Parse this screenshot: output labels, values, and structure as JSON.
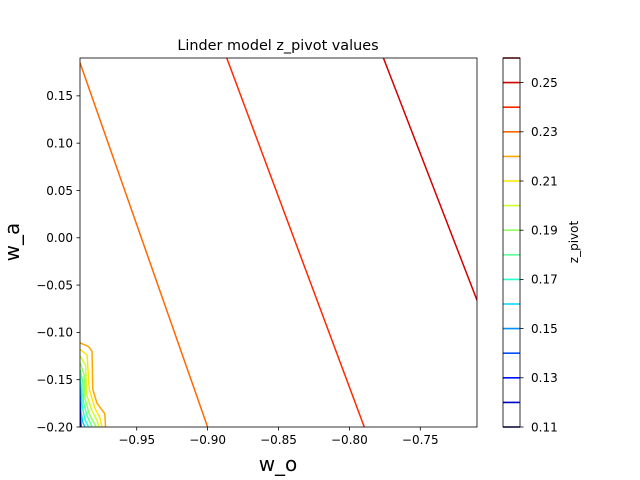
{
  "chart_data": {
    "type": "contour",
    "title": "Linder model z_pivot values",
    "xlabel": "w_o",
    "ylabel": "w_a",
    "xlim": [
      -0.99,
      -0.71
    ],
    "ylim": [
      -0.2,
      0.19
    ],
    "x_ticks": [
      -0.95,
      -0.9,
      -0.85,
      -0.8,
      -0.75
    ],
    "x_tick_labels": [
      "−0.95",
      "−0.90",
      "−0.85",
      "−0.80",
      "−0.75"
    ],
    "y_ticks": [
      0.15,
      0.1,
      0.05,
      0.0,
      -0.05,
      -0.1,
      -0.15,
      -0.2
    ],
    "y_tick_labels": [
      "0.15",
      "0.10",
      "0.05",
      "0.00",
      "−0.05",
      "−0.10",
      "−0.15",
      "−0.20"
    ],
    "colorbar": {
      "label": "z_pivot",
      "range": [
        0.11,
        0.26
      ],
      "levels": [
        0.11,
        0.12,
        0.13,
        0.14,
        0.15,
        0.16,
        0.17,
        0.18,
        0.19,
        0.2,
        0.21,
        0.22,
        0.23,
        0.24,
        0.25,
        0.26
      ],
      "level_colors": [
        "#00007f",
        "#0000c4",
        "#0010ff",
        "#0050ff",
        "#0090ff",
        "#00d4ff",
        "#29ffce",
        "#60ff97",
        "#97ff60",
        "#ceff29",
        "#ffe600",
        "#ffa700",
        "#ff6800",
        "#ff2900",
        "#d40000",
        "#7f0000"
      ],
      "tick_values": [
        0.11,
        0.13,
        0.15,
        0.17,
        0.19,
        0.21,
        0.23,
        0.25
      ],
      "tick_labels": [
        "0.11",
        "0.13",
        "0.15",
        "0.17",
        "0.19",
        "0.21",
        "0.23",
        "0.25"
      ]
    },
    "contour_lines": [
      {
        "level": 0.23,
        "color": "#ff6800",
        "points": [
          [
            -0.99,
            0.185
          ],
          [
            -0.9,
            -0.2
          ]
        ]
      },
      {
        "level": 0.24,
        "color": "#ff2900",
        "points": [
          [
            -0.8865,
            0.19
          ],
          [
            -0.7895,
            -0.2
          ]
        ]
      },
      {
        "level": 0.25,
        "color": "#d40000",
        "points": [
          [
            -0.776,
            0.19
          ],
          [
            -0.71,
            -0.066
          ]
        ]
      }
    ],
    "corner_contours": [
      {
        "level": 0.22,
        "color": "#ffa700",
        "points": [
          [
            -0.99,
            -0.111
          ],
          [
            -0.984,
            -0.115
          ],
          [
            -0.9815,
            -0.12
          ],
          [
            -0.981,
            -0.16
          ],
          [
            -0.978,
            -0.175
          ],
          [
            -0.9725,
            -0.186
          ],
          [
            -0.972,
            -0.2
          ]
        ]
      },
      {
        "level": 0.21,
        "color": "#ffe600",
        "points": [
          [
            -0.99,
            -0.118
          ],
          [
            -0.985,
            -0.124
          ],
          [
            -0.9835,
            -0.16
          ],
          [
            -0.9795,
            -0.18
          ],
          [
            -0.976,
            -0.19
          ],
          [
            -0.9745,
            -0.2
          ]
        ]
      },
      {
        "level": 0.2,
        "color": "#ceff29",
        "points": [
          [
            -0.99,
            -0.125
          ],
          [
            -0.986,
            -0.135
          ],
          [
            -0.9855,
            -0.165
          ],
          [
            -0.9815,
            -0.183
          ],
          [
            -0.978,
            -0.193
          ],
          [
            -0.9765,
            -0.2
          ]
        ]
      },
      {
        "level": 0.19,
        "color": "#97ff60",
        "points": [
          [
            -0.99,
            -0.132
          ],
          [
            -0.987,
            -0.145
          ],
          [
            -0.9865,
            -0.17
          ],
          [
            -0.9835,
            -0.186
          ],
          [
            -0.98,
            -0.196
          ],
          [
            -0.9785,
            -0.2
          ]
        ]
      },
      {
        "level": 0.18,
        "color": "#60ff97",
        "points": [
          [
            -0.99,
            -0.139
          ],
          [
            -0.988,
            -0.153
          ],
          [
            -0.9875,
            -0.174
          ],
          [
            -0.985,
            -0.188
          ],
          [
            -0.9815,
            -0.2
          ]
        ]
      },
      {
        "level": 0.17,
        "color": "#29ffce",
        "points": [
          [
            -0.99,
            -0.146
          ],
          [
            -0.989,
            -0.16
          ],
          [
            -0.9885,
            -0.178
          ],
          [
            -0.9865,
            -0.192
          ],
          [
            -0.984,
            -0.2
          ]
        ]
      },
      {
        "level": 0.16,
        "color": "#00d4ff",
        "points": [
          [
            -0.99,
            -0.153
          ],
          [
            -0.9895,
            -0.168
          ],
          [
            -0.9895,
            -0.183
          ],
          [
            -0.988,
            -0.195
          ],
          [
            -0.9865,
            -0.2
          ]
        ]
      },
      {
        "level": 0.15,
        "color": "#0090ff",
        "points": [
          [
            -0.99,
            -0.16
          ],
          [
            -0.9898,
            -0.175
          ],
          [
            -0.9898,
            -0.188
          ],
          [
            -0.989,
            -0.2
          ]
        ]
      },
      {
        "level": 0.14,
        "color": "#0050ff",
        "points": [
          [
            -0.99,
            -0.167
          ],
          [
            -0.99,
            -0.181
          ],
          [
            -0.9899,
            -0.193
          ],
          [
            -0.9895,
            -0.2
          ]
        ]
      },
      {
        "level": 0.13,
        "color": "#0010ff",
        "points": [
          [
            -0.99,
            -0.174
          ],
          [
            -0.9899,
            -0.188
          ],
          [
            -0.99,
            -0.2
          ]
        ]
      },
      {
        "level": 0.12,
        "color": "#0000c4",
        "points": [
          [
            -0.99,
            -0.181
          ],
          [
            -0.99,
            -0.2
          ]
        ]
      },
      {
        "level": 0.11,
        "color": "#00007f",
        "points": [
          [
            -0.99,
            -0.19
          ],
          [
            -0.99,
            -0.2
          ]
        ]
      }
    ],
    "grid": false
  }
}
